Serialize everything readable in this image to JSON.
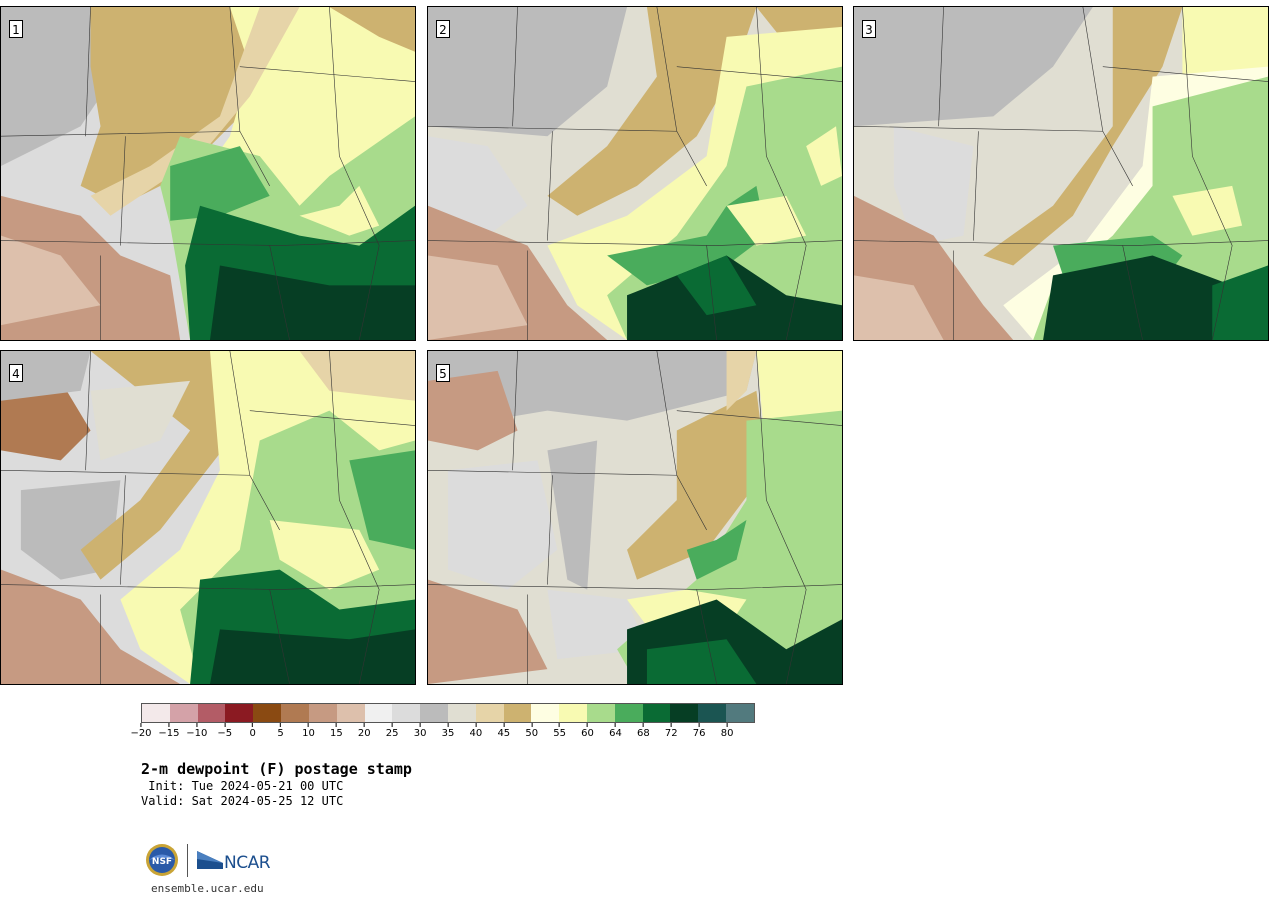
{
  "panels": [
    {
      "number": "1"
    },
    {
      "number": "2"
    },
    {
      "number": "3"
    },
    {
      "number": "4"
    },
    {
      "number": "5"
    }
  ],
  "colorbar": {
    "colors": [
      "#f3e9ea",
      "#d4a2a8",
      "#b35c66",
      "#8b1a22",
      "#8a4a12",
      "#b07a52",
      "#c69a82",
      "#ddc0ac",
      "#f0f0f0",
      "#dcdcdc",
      "#bbbbbb",
      "#e0ded2",
      "#e6d4a8",
      "#cdb270",
      "#fefee2",
      "#f8fab2",
      "#a8db8c",
      "#4aac5c",
      "#0a6b34",
      "#063e24",
      "#1b5552",
      "#527a7e"
    ],
    "tick_labels": [
      "−20",
      "−15",
      "−10",
      "−5",
      "0",
      "5",
      "10",
      "15",
      "20",
      "25",
      "30",
      "35",
      "40",
      "45",
      "50",
      "55",
      "60",
      "64",
      "68",
      "72",
      "76",
      "80"
    ]
  },
  "title": "2-m dewpoint (F) postage stamp",
  "init_line": " Init: Tue 2024-05-21 00 UTC",
  "valid_line": "Valid: Sat 2024-05-25 12 UTC",
  "logos": {
    "nsf": "NSF",
    "ncar": "NCAR"
  },
  "website": "ensemble.ucar.edu"
}
